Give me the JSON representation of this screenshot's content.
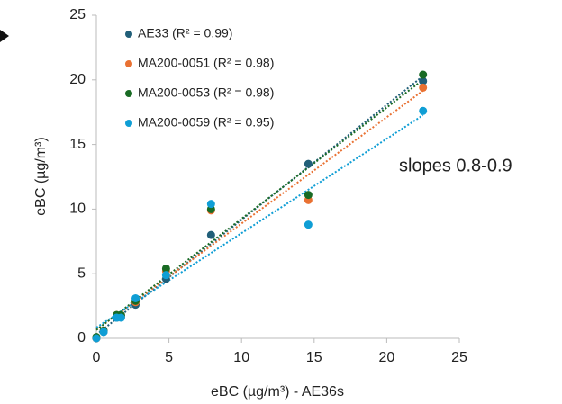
{
  "chart_data": {
    "type": "scatter",
    "xlabel": "eBC (µg/m³) - AE36s",
    "ylabel": "eBC (µg/m³)",
    "annotation": "slopes 0.8-0.9",
    "x": [
      0,
      0.5,
      1.4,
      1.7,
      2.7,
      4.8,
      7.9,
      14.6,
      22.5
    ],
    "series": [
      {
        "name": "AE33 (R² = 0.99)",
        "color": "#215f79",
        "values": [
          0,
          0.5,
          1.6,
          1.7,
          2.6,
          4.6,
          8.0,
          13.5,
          19.9
        ]
      },
      {
        "name": "MA200-0051 (R² = 0.98)",
        "color": "#e97132",
        "values": [
          0,
          0.6,
          1.8,
          1.7,
          2.8,
          5.2,
          9.9,
          10.7,
          19.4
        ]
      },
      {
        "name": "MA200-0053 (R² = 0.98)",
        "color": "#196b24",
        "values": [
          0.1,
          0.6,
          1.8,
          1.8,
          2.9,
          5.4,
          10.0,
          11.1,
          20.4
        ]
      },
      {
        "name": "MA200-0059 (R² = 0.95)",
        "color": "#0f9ed5",
        "values": [
          0,
          0.5,
          1.6,
          1.6,
          3.1,
          4.9,
          10.4,
          8.8,
          17.6
        ]
      }
    ],
    "trendline": "linear",
    "xlim": [
      0,
      25
    ],
    "xticks": [
      0,
      5,
      10,
      15,
      20,
      25
    ],
    "ylim": [
      0,
      25
    ],
    "yticks": [
      0,
      5,
      10,
      15,
      20,
      25
    ],
    "grid": false
  }
}
